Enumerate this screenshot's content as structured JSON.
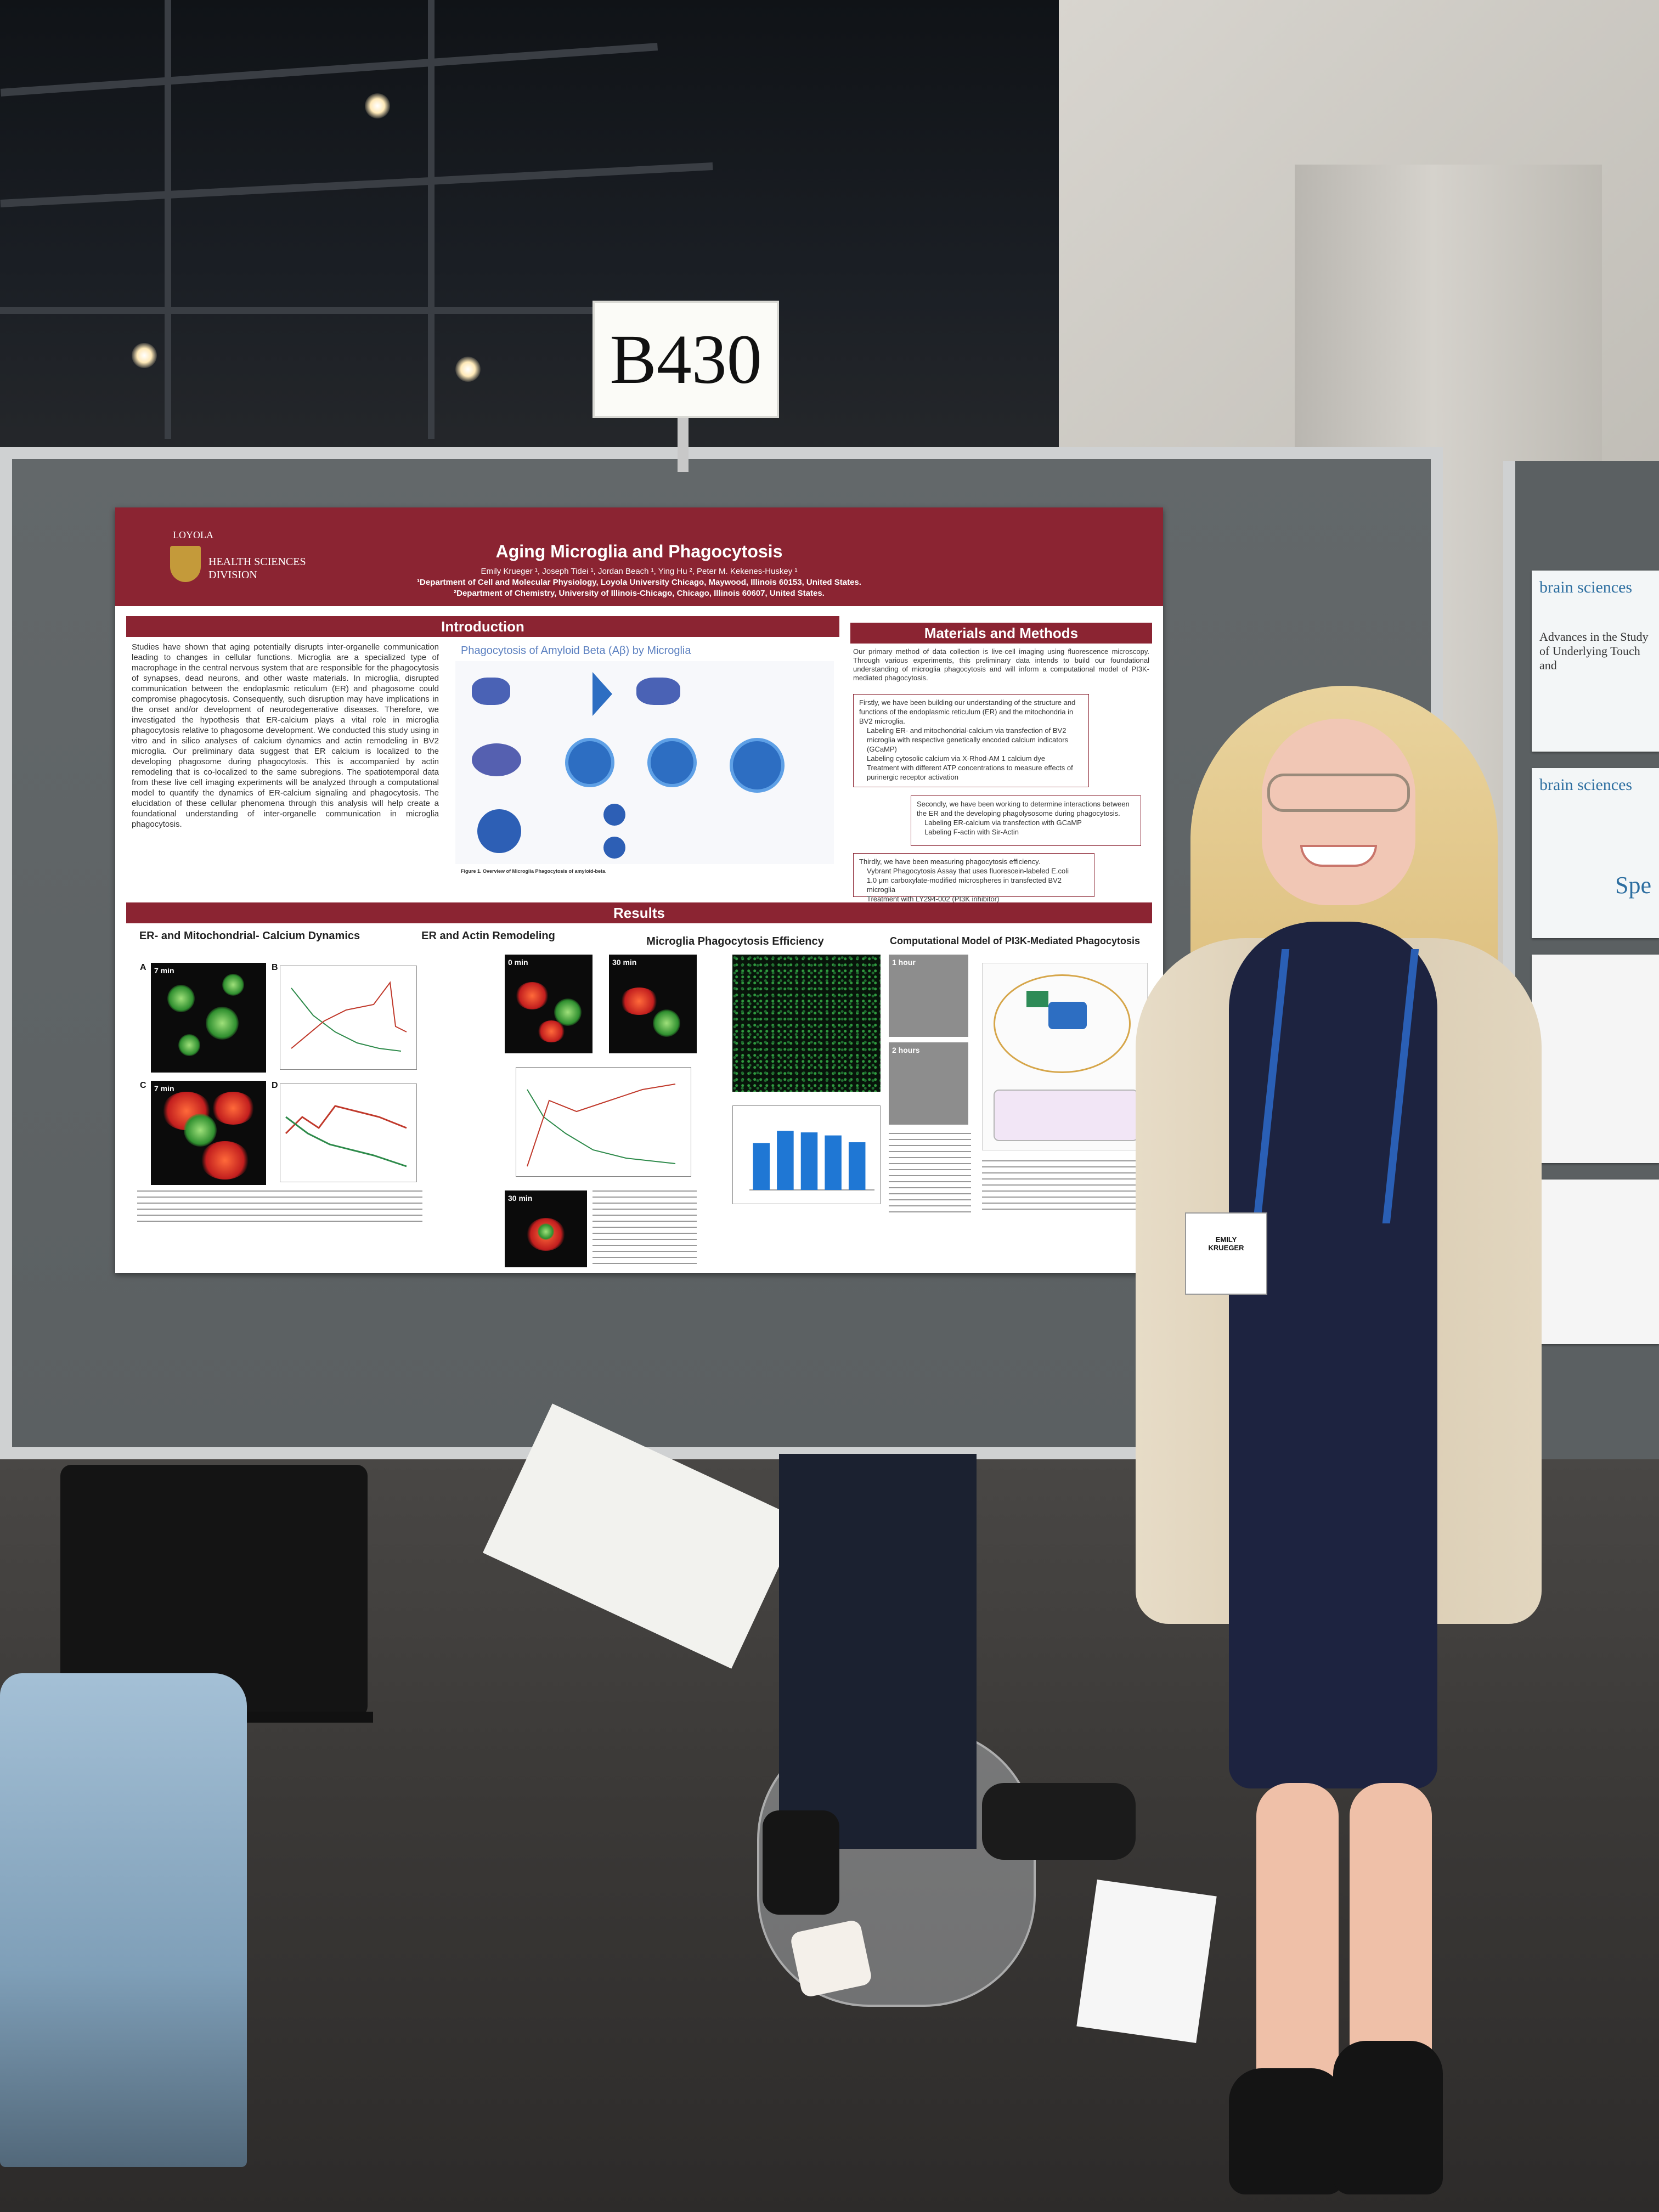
{
  "booth": {
    "number": "B430"
  },
  "poster": {
    "logo": {
      "line1": "LOYOLA",
      "line2": "HEALTH SCIENCES",
      "line3": "DIVISION"
    },
    "title": "Aging Microglia and Phagocytosis",
    "authors": "Emily Krueger ¹, Joseph Tidei ¹, Jordan Beach ¹, Ying Hu ², Peter M. Kekenes-Huskey ¹",
    "affiliation1": "¹Department of Cell and Molecular Physiology, Loyola University Chicago, Maywood, Illinois 60153, United States.",
    "affiliation2": "²Department of Chemistry, University of Illinois-Chicago, Chicago, Illinois 60607, United States.",
    "introduction": {
      "heading": "Introduction",
      "text": "Studies have shown that aging potentially disrupts inter-organelle communication leading to changes in cellular functions. Microglia are a specialized type of macrophage in the central nervous system that are responsible for the phagocytosis of synapses, dead neurons, and other waste materials. In microglia, disrupted communication between the endoplasmic reticulum (ER) and phagosome could compromise phagocytosis. Consequently, such disruption may have implications in the onset and/or development of neurodegenerative diseases. Therefore, we investigated the hypothesis that ER-calcium plays a vital role in microglia phagocytosis relative to phagosome development. We conducted this study using in vitro and in silico analyses of calcium dynamics and actin remodeling in BV2 microglia. Our preliminary data suggest that ER calcium is localized to the developing phagosome during phagocytosis. This is accompanied by actin remodeling that is co-localized to the same subregions. The spatiotemporal data from these live cell imaging experiments will be analyzed through a computational model to quantify the dynamics of ER-calcium signaling and phagocytosis. The elucidation of these cellular phenomena through this analysis will help create a foundational understanding of inter-organelle communication in microglia phagocytosis.",
      "figure_title": "Phagocytosis of Amyloid Beta (Aβ) by Microglia",
      "figure_caption": "Figure 1. Overview of Microglia Phagocytosis of amyloid-beta."
    },
    "methods": {
      "heading": "Materials and Methods",
      "intro": "Our primary method of data collection is live-cell imaging using fluorescence microscopy. Through various experiments, this preliminary data intends to build our foundational understanding of microglia phagocytosis and will inform a computational model of PI3K-mediated phagocytosis.",
      "box1": "Firstly, we have been building our understanding of the structure and functions of the endoplasmic reticulum (ER) and the mitochondria in BV2 microglia.",
      "box1_items": [
        "Labeling ER- and mitochondrial-calcium via transfection of BV2 microglia with respective genetically encoded calcium indicators (GCaMP)",
        "Labeling cytosolic calcium via X-Rhod-AM 1 calcium dye",
        "Treatment with different ATP concentrations to measure effects of purinergic receptor activation"
      ],
      "box2": "Secondly, we have been working to determine interactions between the ER and the developing phagolysosome during phagocytosis.",
      "box2_items": [
        "Labeling ER-calcium via transfection with GCaMP",
        "Labeling F-actin with Sir-Actin"
      ],
      "box3": "Thirdly, we have been measuring phagocytosis efficiency.",
      "box3_items": [
        "Vybrant Phagocytosis Assay that uses fluorescein-labeled E.coli",
        "1.0 μm carboxylate-modified microspheres in transfected BV2 microglia",
        "Treatment with LY294-002 (PI3K inhibitor)"
      ]
    },
    "results": {
      "heading": "Results",
      "col1_title": "ER- and Mitochondrial- Calcium Dynamics",
      "col2_title": "ER and Actin Remodeling",
      "col3_title": "Microglia Phagocytosis Efficiency",
      "col4_title": "Computational Model of PI3K-Mediated Phagocytosis",
      "time_7min_a": "7 min",
      "time_7min_c": "7 min",
      "time_0min": "0 min",
      "time_30min_b": "30 min",
      "time_30min_d": "30 min",
      "time_1hour": "1 hour",
      "time_2hours": "2 hours",
      "letters": [
        "A",
        "B",
        "C",
        "D"
      ],
      "bar_values": [
        0.62,
        0.78,
        0.76,
        0.72,
        0.63
      ]
    }
  },
  "side_poster": {
    "journal": "brain sciences",
    "heading": "Advances in the Study of Underlying Touch and",
    "partial": "Spe"
  },
  "badge": {
    "name_line1": "EMILY",
    "name_line2": "KRUEGER"
  },
  "colors": {
    "poster_maroon": "#8b2432",
    "board_gray": "#5b6062",
    "dress_navy": "#1d2340",
    "hair_blonde": "#e6c98a"
  }
}
